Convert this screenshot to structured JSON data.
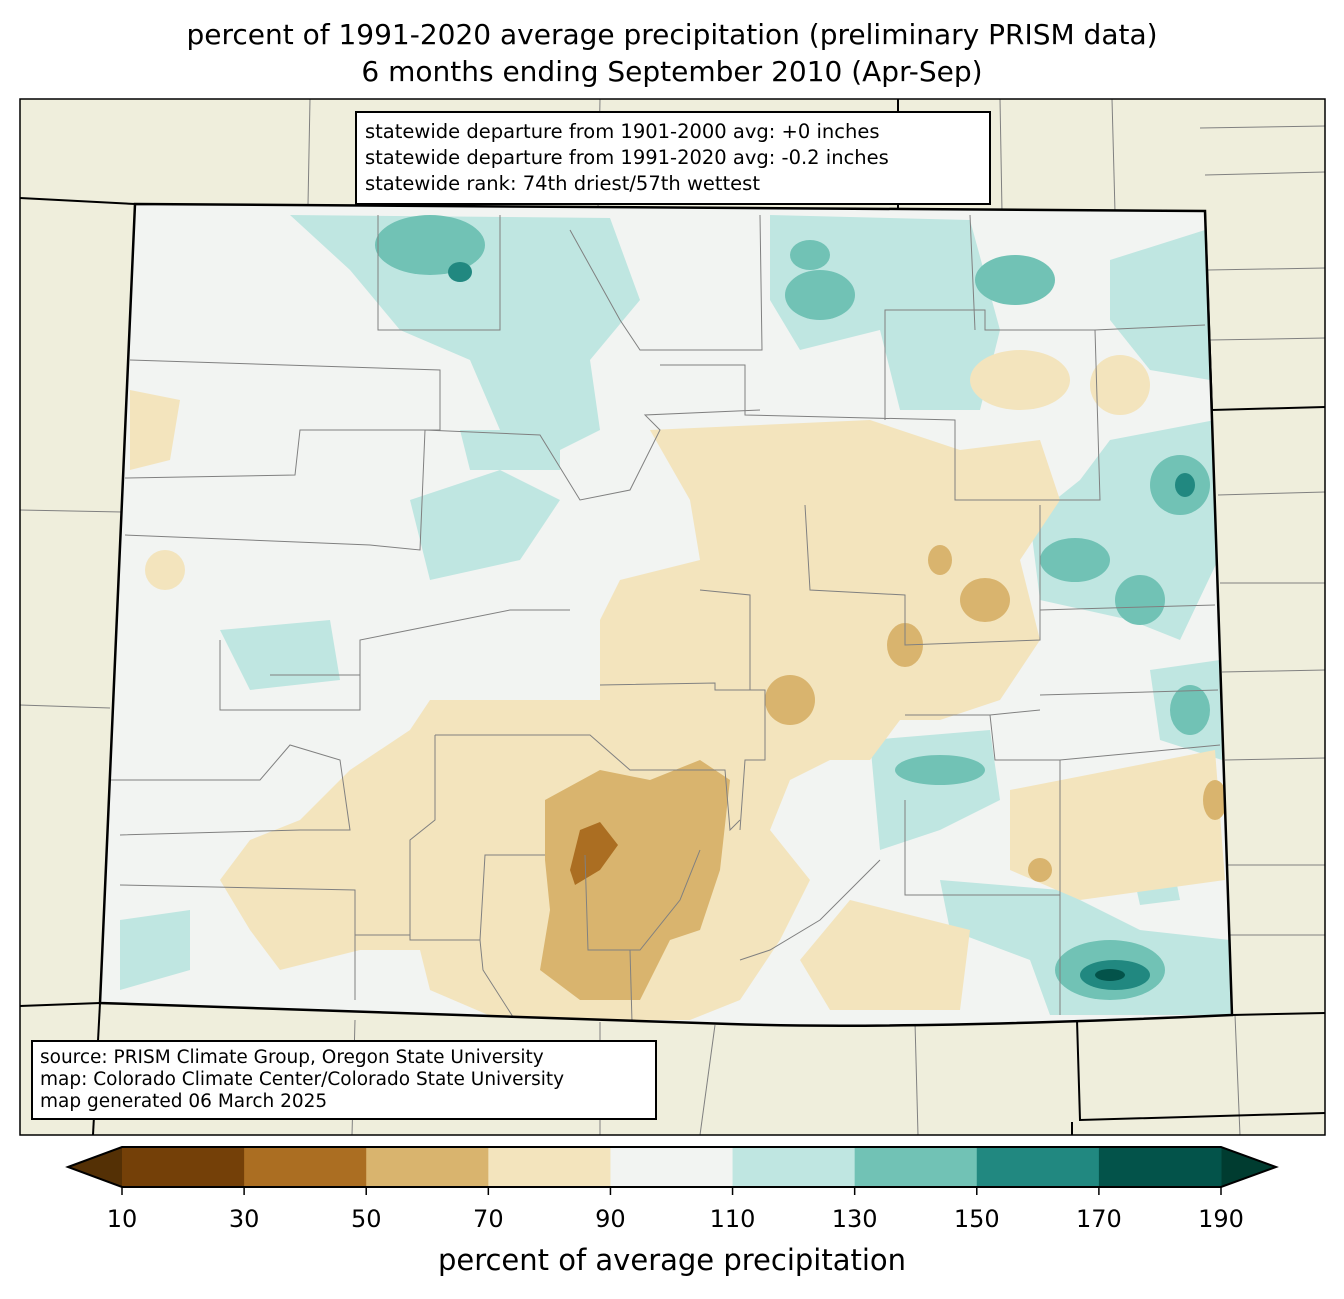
{
  "title": {
    "line1": "percent of 1991-2020 average precipitation (preliminary PRISM data)",
    "line2": "6 months ending September 2010 (Apr-Sep)"
  },
  "stats_box": {
    "line1": "statewide departure from 1901-2000 avg: +0 inches",
    "line2": "statewide departure from 1991-2020 avg: -0.2 inches",
    "line3": "statewide rank: 74th driest/57th wettest"
  },
  "source_box": {
    "line1": "source: PRISM Climate Group, Oregon State University",
    "line2": "map: Colorado Climate Center/Colorado State University",
    "line3": "map generated 06 March 2025"
  },
  "colorbar": {
    "label": "percent of average precipitation",
    "ticks": [
      "10",
      "30",
      "50",
      "70",
      "90",
      "110",
      "130",
      "150",
      "170",
      "190"
    ],
    "bin_colors": [
      "#744008",
      "#ab6e22",
      "#d9b46e",
      "#f3e4bd",
      "#f2f4f2",
      "#bfe6e1",
      "#71c2b5",
      "#218880",
      "#03534a"
    ],
    "extend_low_color": "#543005",
    "extend_high_color": "#003c30"
  },
  "map_colors": {
    "land_outside": "#efeedc",
    "county_lines": "#808080"
  }
}
